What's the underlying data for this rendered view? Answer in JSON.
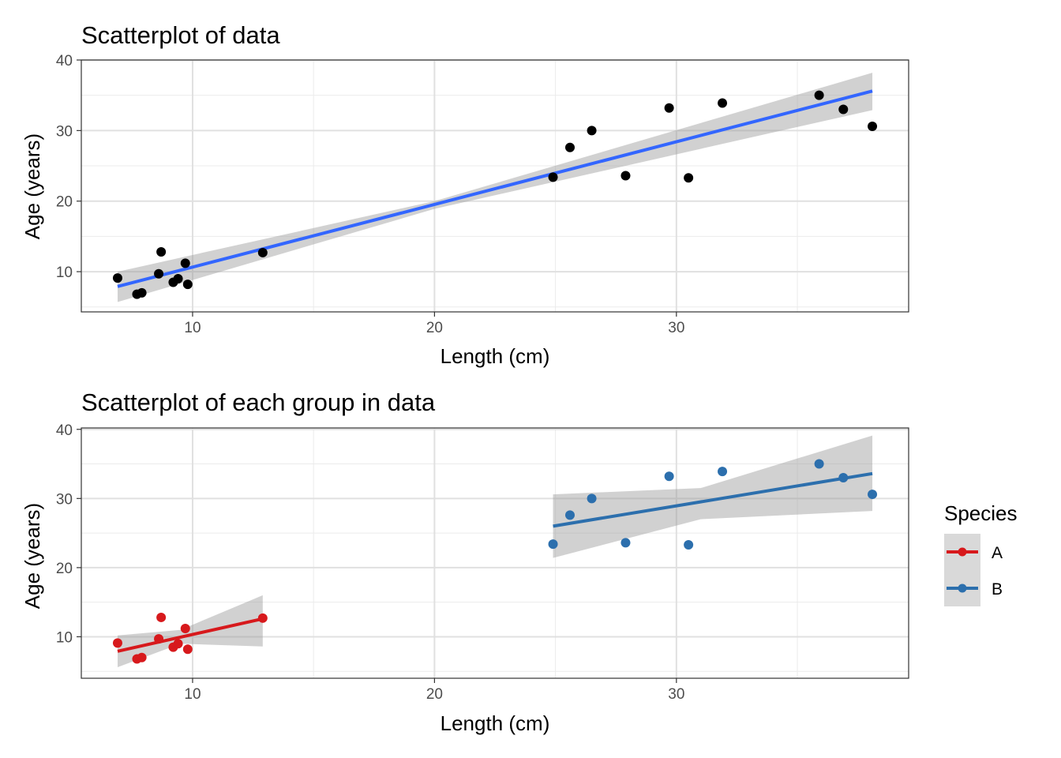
{
  "chart_data": [
    {
      "type": "scatter",
      "title": "Scatterplot of data",
      "xlabel": "Length (cm)",
      "ylabel": "Age (years)",
      "xlim": [
        5.4,
        39.6
      ],
      "ylim": [
        4.3,
        40
      ],
      "xticks": [
        10,
        20,
        30
      ],
      "yticks": [
        10,
        20,
        30,
        40
      ],
      "grid": true,
      "series": [
        {
          "name": "all",
          "color": "#000000",
          "points": [
            {
              "x": 6.9,
              "y": 9.1
            },
            {
              "x": 7.7,
              "y": 6.8
            },
            {
              "x": 7.9,
              "y": 7.0
            },
            {
              "x": 8.6,
              "y": 9.7
            },
            {
              "x": 8.7,
              "y": 12.8
            },
            {
              "x": 9.2,
              "y": 8.5
            },
            {
              "x": 9.4,
              "y": 9.0
            },
            {
              "x": 9.7,
              "y": 11.2
            },
            {
              "x": 9.8,
              "y": 8.2
            },
            {
              "x": 12.9,
              "y": 12.7
            },
            {
              "x": 24.9,
              "y": 23.4
            },
            {
              "x": 25.6,
              "y": 27.6
            },
            {
              "x": 26.5,
              "y": 30.0
            },
            {
              "x": 27.9,
              "y": 23.6
            },
            {
              "x": 29.7,
              "y": 33.2
            },
            {
              "x": 30.5,
              "y": 23.3
            },
            {
              "x": 31.9,
              "y": 33.9
            },
            {
              "x": 35.9,
              "y": 35.0
            },
            {
              "x": 36.9,
              "y": 33.0
            },
            {
              "x": 38.1,
              "y": 30.6
            }
          ],
          "fit": {
            "x0": 6.9,
            "x1": 38.1,
            "y0": 7.9,
            "y1": 35.6,
            "color": "#3366ff",
            "band": [
              [
                6.9,
                5.7,
                10.0
              ],
              [
                20,
                18.9,
                20.0
              ],
              [
                38.1,
                32.9,
                38.2
              ]
            ]
          }
        }
      ]
    },
    {
      "type": "scatter",
      "title": "Scatterplot of each group in data",
      "xlabel": "Length (cm)",
      "ylabel": "Age (years)",
      "xlim": [
        5.4,
        39.6
      ],
      "ylim": [
        4.0,
        40.2
      ],
      "xticks": [
        10,
        20,
        30
      ],
      "yticks": [
        10,
        20,
        30,
        40
      ],
      "grid": true,
      "legend": {
        "title": "Species",
        "position": "right",
        "entries": [
          {
            "label": "A",
            "color": "#d7191c"
          },
          {
            "label": "B",
            "color": "#2c6fad"
          }
        ]
      },
      "series": [
        {
          "name": "A",
          "color": "#d7191c",
          "points": [
            {
              "x": 6.9,
              "y": 9.1
            },
            {
              "x": 7.7,
              "y": 6.8
            },
            {
              "x": 7.9,
              "y": 7.0
            },
            {
              "x": 8.6,
              "y": 9.7
            },
            {
              "x": 8.7,
              "y": 12.8
            },
            {
              "x": 9.2,
              "y": 8.5
            },
            {
              "x": 9.4,
              "y": 9.0
            },
            {
              "x": 9.7,
              "y": 11.2
            },
            {
              "x": 9.8,
              "y": 8.2
            },
            {
              "x": 12.9,
              "y": 12.7
            }
          ],
          "fit": {
            "x0": 6.9,
            "x1": 12.9,
            "y0": 7.9,
            "y1": 12.6,
            "color": "#d7191c",
            "band": [
              [
                6.9,
                5.6,
                10.2
              ],
              [
                9.5,
                9.0,
                11.0
              ],
              [
                12.9,
                8.6,
                16.0
              ]
            ]
          }
        },
        {
          "name": "B",
          "color": "#2c6fad",
          "points": [
            {
              "x": 24.9,
              "y": 23.4
            },
            {
              "x": 25.6,
              "y": 27.6
            },
            {
              "x": 26.5,
              "y": 30.0
            },
            {
              "x": 27.9,
              "y": 23.6
            },
            {
              "x": 29.7,
              "y": 33.2
            },
            {
              "x": 30.5,
              "y": 23.3
            },
            {
              "x": 31.9,
              "y": 33.9
            },
            {
              "x": 35.9,
              "y": 35.0
            },
            {
              "x": 36.9,
              "y": 33.0
            },
            {
              "x": 38.1,
              "y": 30.6
            }
          ],
          "fit": {
            "x0": 24.9,
            "x1": 38.1,
            "y0": 26.0,
            "y1": 33.6,
            "color": "#2c6fad",
            "band": [
              [
                24.9,
                21.4,
                30.6
              ],
              [
                31.0,
                27.0,
                31.5
              ],
              [
                38.1,
                28.2,
                39.1
              ]
            ]
          }
        }
      ]
    }
  ]
}
